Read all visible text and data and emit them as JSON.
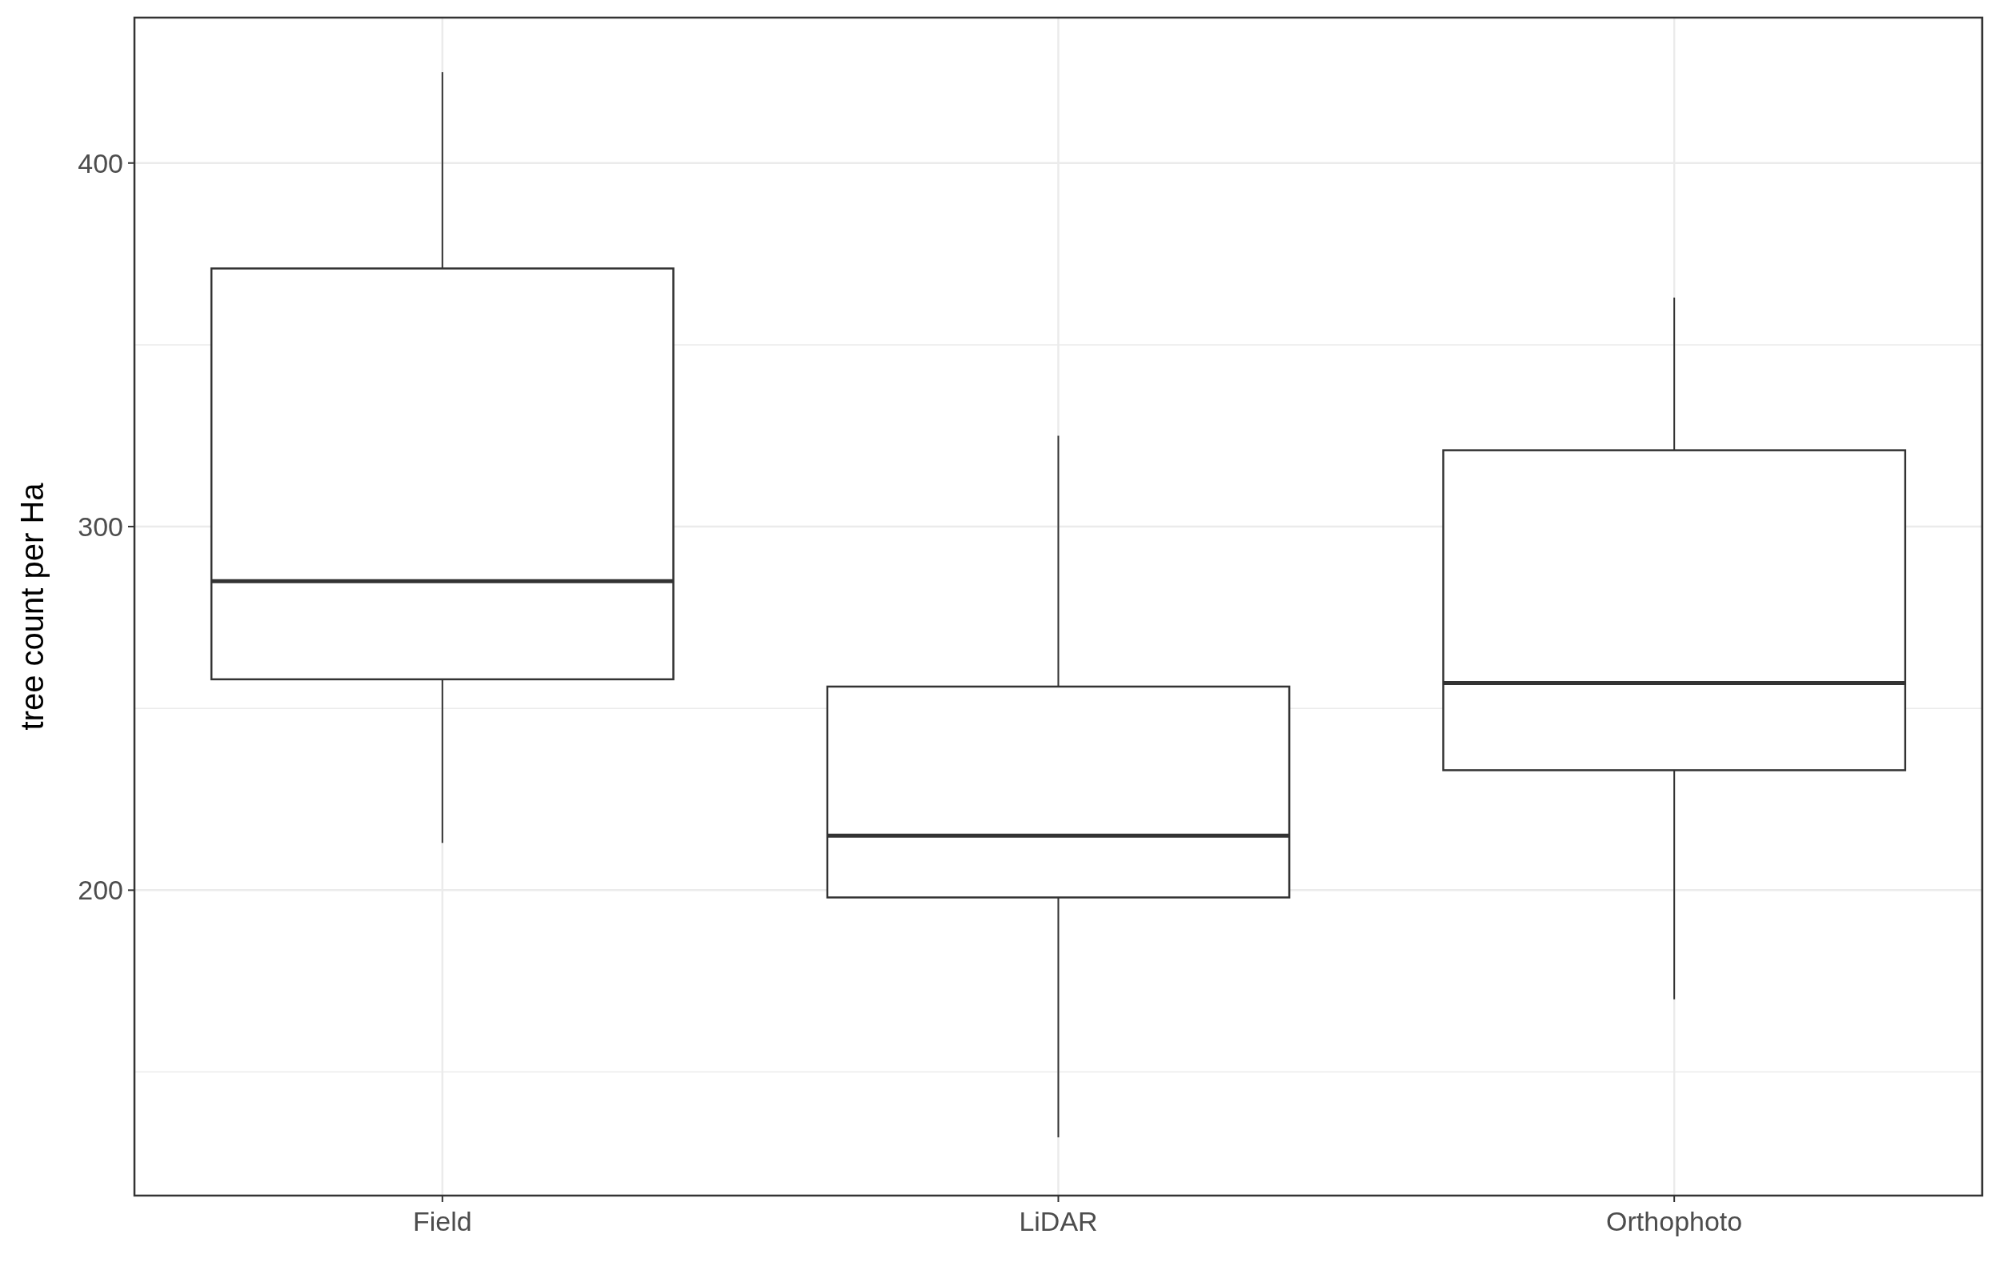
{
  "chart_data": {
    "type": "box",
    "ylabel": "tree count per Ha",
    "categories": [
      "Field",
      "LiDAR",
      "Orthophoto"
    ],
    "boxes": [
      {
        "low": 213,
        "q1": 258,
        "median": 285,
        "q3": 371,
        "high": 425
      },
      {
        "low": 132,
        "q1": 198,
        "median": 215,
        "q3": 256,
        "high": 325
      },
      {
        "low": 170,
        "q1": 233,
        "median": 257,
        "q3": 321,
        "high": 363
      }
    ],
    "color": "#333333",
    "ylim": [
      116,
      440
    ],
    "yticks": [
      {
        "value": 150,
        "label": null
      },
      200,
      {
        "value": 250,
        "label": null
      },
      300,
      {
        "value": 350,
        "label": null
      },
      400
    ],
    "grid": true
  }
}
